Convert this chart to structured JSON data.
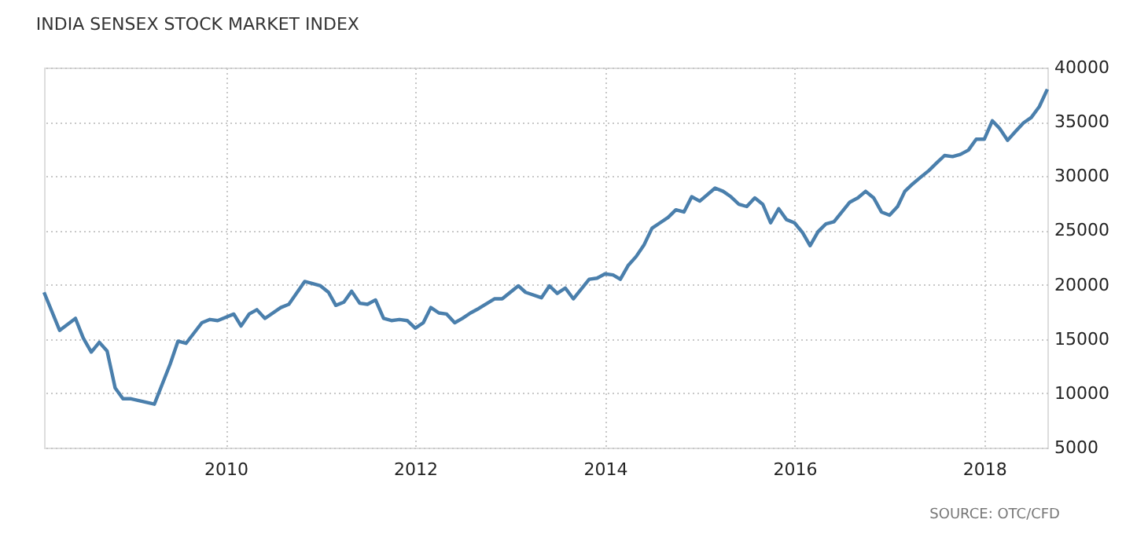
{
  "chart_data": {
    "type": "line",
    "title": "INDIA SENSEX STOCK MARKET INDEX",
    "annotations": [
      "SOURCE: OTC/CFD"
    ],
    "x": [
      "2008-02",
      "2008-04",
      "2008-06",
      "2008-07",
      "2008-08",
      "2008-09",
      "2008-10",
      "2008-11",
      "2008-12",
      "2009-01",
      "2009-04",
      "2009-06",
      "2009-07",
      "2009-08",
      "2009-10",
      "2009-11",
      "2009-12",
      "2010-02",
      "2010-03",
      "2010-04",
      "2010-05",
      "2010-06",
      "2010-08",
      "2010-09",
      "2010-11",
      "2011-01",
      "2011-02",
      "2011-03",
      "2011-04",
      "2011-05",
      "2011-06",
      "2011-07",
      "2011-08",
      "2011-09",
      "2011-10",
      "2011-11",
      "2011-12",
      "2012-01",
      "2012-02",
      "2012-03",
      "2012-04",
      "2012-05",
      "2012-06",
      "2012-07",
      "2012-08",
      "2012-09",
      "2012-11",
      "2012-12",
      "2013-02",
      "2013-03",
      "2013-05",
      "2013-06",
      "2013-07",
      "2013-08",
      "2013-09",
      "2013-11",
      "2013-12",
      "2014-01",
      "2014-02",
      "2014-03",
      "2014-04",
      "2014-05",
      "2014-06",
      "2014-07",
      "2014-08",
      "2014-09",
      "2014-10",
      "2014-11",
      "2014-12",
      "2015-01",
      "2015-03",
      "2015-04",
      "2015-05",
      "2015-06",
      "2015-07",
      "2015-08",
      "2015-09",
      "2015-10",
      "2015-11",
      "2015-12",
      "2016-01",
      "2016-02",
      "2016-03",
      "2016-04",
      "2016-05",
      "2016-06",
      "2016-08",
      "2016-09",
      "2016-10",
      "2016-11",
      "2016-12",
      "2017-01",
      "2017-02",
      "2017-03",
      "2017-04",
      "2017-05",
      "2017-06",
      "2017-07",
      "2017-08",
      "2017-09",
      "2017-10",
      "2017-11",
      "2017-12",
      "2018-01",
      "2018-02",
      "2018-03",
      "2018-04",
      "2018-05",
      "2018-06",
      "2018-07",
      "2018-08",
      "2018-09"
    ],
    "series": [
      {
        "color": "#4a7fac",
        "values": [
          19300,
          15800,
          16900,
          15100,
          13800,
          14700,
          13900,
          10500,
          9500,
          9500,
          9000,
          12700,
          14800,
          14600,
          16500,
          16800,
          16700,
          17300,
          16200,
          17300,
          17700,
          16900,
          17900,
          18200,
          20300,
          19900,
          19300,
          18100,
          18400,
          19400,
          18300,
          18200,
          18600,
          16900,
          16700,
          16800,
          16700,
          16000,
          16500,
          17900,
          17400,
          17300,
          16500,
          16900,
          17400,
          17800,
          18700,
          18700,
          19900,
          19300,
          18800,
          19900,
          19200,
          19700,
          18700,
          20500,
          20600,
          21000,
          20900,
          20500,
          21800,
          22600,
          23700,
          25200,
          25700,
          26200,
          26900,
          26700,
          28100,
          27700,
          28900,
          28600,
          28100,
          27400,
          27200,
          28000,
          27400,
          25700,
          27000,
          26000,
          25700,
          24800,
          23600,
          24900,
          25600,
          25800,
          27600,
          28000,
          28600,
          28000,
          26700,
          26400,
          27200,
          28600,
          29300,
          29900,
          30500,
          31200,
          31900,
          31800,
          32000,
          32400,
          33400,
          33400,
          35100,
          34400,
          33300,
          34100,
          34900,
          35400,
          36400,
          38000
        ]
      }
    ],
    "xlim": [
      "2008-02",
      "2018-09"
    ],
    "xticks": [
      {
        "value": "2010",
        "label": "2010"
      },
      {
        "value": "2012",
        "label": "2012"
      },
      {
        "value": "2014",
        "label": "2014"
      },
      {
        "value": "2016",
        "label": "2016"
      },
      {
        "value": "2018",
        "label": "2018"
      }
    ],
    "ylim": [
      5000,
      40000
    ],
    "yticks": [
      5000,
      10000,
      15000,
      20000,
      25000,
      30000,
      35000,
      40000
    ],
    "grid": true,
    "marker": "none",
    "line_style": "solid"
  }
}
